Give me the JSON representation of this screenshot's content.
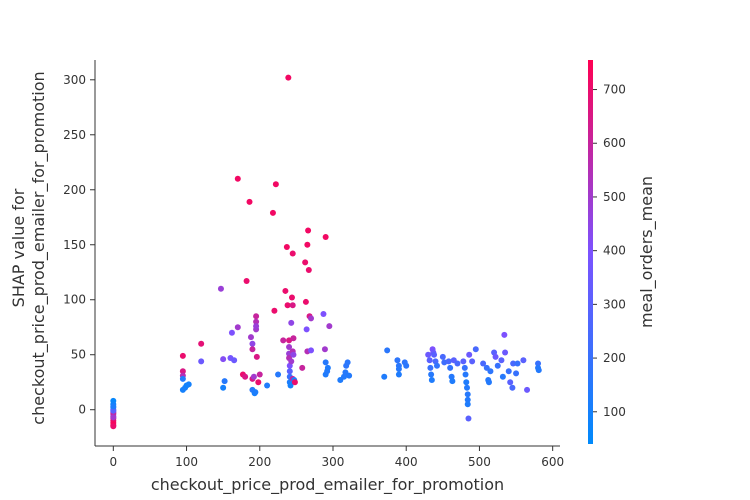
{
  "chart_data": {
    "type": "scatter",
    "xlabel": "checkout_price_prod_emailer_for_promotion",
    "ylabel_lines": [
      "SHAP value for",
      "checkout_price_prod_emailer_for_promotion"
    ],
    "colorbar_label": "meal_orders_mean",
    "xlim": [
      -25,
      610
    ],
    "ylim": [
      -33,
      318
    ],
    "x_ticks": [
      0,
      100,
      200,
      300,
      400,
      500,
      600
    ],
    "y_ticks": [
      0,
      50,
      100,
      150,
      200,
      250,
      300
    ],
    "colorbar_range": [
      40,
      755
    ],
    "colorbar_ticks": [
      100,
      200,
      300,
      400,
      500,
      600,
      700
    ],
    "color_low": "#008afb",
    "color_mid": "#7c52ff",
    "color_high": "#ff0052",
    "points": [
      {
        "x": 0,
        "y": 8,
        "c": 60
      },
      {
        "x": 0,
        "y": 5,
        "c": 80
      },
      {
        "x": 0,
        "y": 2,
        "c": 150
      },
      {
        "x": 0,
        "y": 0,
        "c": 200
      },
      {
        "x": 0,
        "y": -2,
        "c": 350
      },
      {
        "x": 0,
        "y": -4,
        "c": 450
      },
      {
        "x": 0,
        "y": -6,
        "c": 550
      },
      {
        "x": 0,
        "y": -8,
        "c": 650
      },
      {
        "x": 0,
        "y": -10,
        "c": 700
      },
      {
        "x": 0,
        "y": -12,
        "c": 720
      },
      {
        "x": 0,
        "y": -14,
        "c": 740
      },
      {
        "x": 0,
        "y": -15,
        "c": 700
      },
      {
        "x": 0,
        "y": -3,
        "c": 600
      },
      {
        "x": 0,
        "y": -1,
        "c": 300
      },
      {
        "x": 0,
        "y": 3,
        "c": 120
      },
      {
        "x": 0,
        "y": -7,
        "c": 500
      },
      {
        "x": 95,
        "y": 49,
        "c": 700
      },
      {
        "x": 95,
        "y": 35,
        "c": 650
      },
      {
        "x": 95,
        "y": 31,
        "c": 550
      },
      {
        "x": 95,
        "y": 28,
        "c": 140
      },
      {
        "x": 95,
        "y": 18,
        "c": 100
      },
      {
        "x": 98,
        "y": 20,
        "c": 110
      },
      {
        "x": 100,
        "y": 22,
        "c": 90
      },
      {
        "x": 103,
        "y": 23,
        "c": 100
      },
      {
        "x": 120,
        "y": 60,
        "c": 680
      },
      {
        "x": 120,
        "y": 44,
        "c": 350
      },
      {
        "x": 147,
        "y": 110,
        "c": 480
      },
      {
        "x": 150,
        "y": 46,
        "c": 420
      },
      {
        "x": 152,
        "y": 26,
        "c": 150
      },
      {
        "x": 150,
        "y": 20,
        "c": 100
      },
      {
        "x": 160,
        "y": 47,
        "c": 380
      },
      {
        "x": 162,
        "y": 70,
        "c": 400
      },
      {
        "x": 165,
        "y": 45,
        "c": 350
      },
      {
        "x": 170,
        "y": 210,
        "c": 720
      },
      {
        "x": 170,
        "y": 75,
        "c": 500
      },
      {
        "x": 177,
        "y": 32,
        "c": 700
      },
      {
        "x": 180,
        "y": 30,
        "c": 650
      },
      {
        "x": 182,
        "y": 117,
        "c": 700
      },
      {
        "x": 186,
        "y": 189,
        "c": 720
      },
      {
        "x": 188,
        "y": 66,
        "c": 500
      },
      {
        "x": 190,
        "y": 60,
        "c": 450
      },
      {
        "x": 190,
        "y": 55,
        "c": 600
      },
      {
        "x": 190,
        "y": 28,
        "c": 650
      },
      {
        "x": 190,
        "y": 18,
        "c": 150
      },
      {
        "x": 192,
        "y": 30,
        "c": 500
      },
      {
        "x": 193,
        "y": 15,
        "c": 100
      },
      {
        "x": 194,
        "y": 16,
        "c": 120
      },
      {
        "x": 195,
        "y": 85,
        "c": 600
      },
      {
        "x": 195,
        "y": 80,
        "c": 550
      },
      {
        "x": 195,
        "y": 73,
        "c": 500
      },
      {
        "x": 195,
        "y": 76,
        "c": 480
      },
      {
        "x": 196,
        "y": 48,
        "c": 650
      },
      {
        "x": 198,
        "y": 25,
        "c": 700
      },
      {
        "x": 200,
        "y": 32,
        "c": 600
      },
      {
        "x": 210,
        "y": 22,
        "c": 130
      },
      {
        "x": 218,
        "y": 179,
        "c": 720
      },
      {
        "x": 220,
        "y": 90,
        "c": 700
      },
      {
        "x": 222,
        "y": 205,
        "c": 720
      },
      {
        "x": 225,
        "y": 32,
        "c": 150
      },
      {
        "x": 232,
        "y": 63,
        "c": 600
      },
      {
        "x": 235,
        "y": 108,
        "c": 700
      },
      {
        "x": 237,
        "y": 148,
        "c": 720
      },
      {
        "x": 238,
        "y": 95,
        "c": 700
      },
      {
        "x": 239,
        "y": 302,
        "c": 720
      },
      {
        "x": 240,
        "y": 63,
        "c": 650
      },
      {
        "x": 240,
        "y": 57,
        "c": 500
      },
      {
        "x": 240,
        "y": 51,
        "c": 480
      },
      {
        "x": 240,
        "y": 47,
        "c": 550
      },
      {
        "x": 241,
        "y": 40,
        "c": 400
      },
      {
        "x": 241,
        "y": 35,
        "c": 300
      },
      {
        "x": 241,
        "y": 30,
        "c": 200
      },
      {
        "x": 241,
        "y": 25,
        "c": 120
      },
      {
        "x": 242,
        "y": 22,
        "c": 100
      },
      {
        "x": 243,
        "y": 79,
        "c": 450
      },
      {
        "x": 243,
        "y": 44,
        "c": 500
      },
      {
        "x": 244,
        "y": 102,
        "c": 700
      },
      {
        "x": 245,
        "y": 142,
        "c": 700
      },
      {
        "x": 245,
        "y": 95,
        "c": 650
      },
      {
        "x": 245,
        "y": 53,
        "c": 550
      },
      {
        "x": 245,
        "y": 28,
        "c": 600
      },
      {
        "x": 246,
        "y": 65,
        "c": 600
      },
      {
        "x": 246,
        "y": 50,
        "c": 450
      },
      {
        "x": 247,
        "y": 27,
        "c": 130
      },
      {
        "x": 248,
        "y": 25,
        "c": 700
      },
      {
        "x": 258,
        "y": 38,
        "c": 600
      },
      {
        "x": 262,
        "y": 134,
        "c": 700
      },
      {
        "x": 263,
        "y": 98,
        "c": 700
      },
      {
        "x": 264,
        "y": 73,
        "c": 400
      },
      {
        "x": 265,
        "y": 150,
        "c": 720
      },
      {
        "x": 265,
        "y": 53,
        "c": 550
      },
      {
        "x": 266,
        "y": 163,
        "c": 720
      },
      {
        "x": 267,
        "y": 127,
        "c": 700
      },
      {
        "x": 268,
        "y": 85,
        "c": 650
      },
      {
        "x": 270,
        "y": 83,
        "c": 500
      },
      {
        "x": 270,
        "y": 54,
        "c": 400
      },
      {
        "x": 287,
        "y": 87,
        "c": 400
      },
      {
        "x": 289,
        "y": 55,
        "c": 500
      },
      {
        "x": 290,
        "y": 157,
        "c": 720
      },
      {
        "x": 290,
        "y": 32,
        "c": 130
      },
      {
        "x": 290,
        "y": 43,
        "c": 150
      },
      {
        "x": 292,
        "y": 35,
        "c": 140
      },
      {
        "x": 293,
        "y": 38,
        "c": 130
      },
      {
        "x": 295,
        "y": 76,
        "c": 500
      },
      {
        "x": 310,
        "y": 27,
        "c": 130
      },
      {
        "x": 315,
        "y": 30,
        "c": 140
      },
      {
        "x": 317,
        "y": 34,
        "c": 150
      },
      {
        "x": 318,
        "y": 40,
        "c": 170
      },
      {
        "x": 320,
        "y": 43,
        "c": 160
      },
      {
        "x": 322,
        "y": 31,
        "c": 140
      },
      {
        "x": 370,
        "y": 30,
        "c": 130
      },
      {
        "x": 374,
        "y": 54,
        "c": 160
      },
      {
        "x": 388,
        "y": 45,
        "c": 170
      },
      {
        "x": 390,
        "y": 40,
        "c": 160
      },
      {
        "x": 390,
        "y": 37,
        "c": 150
      },
      {
        "x": 390,
        "y": 32,
        "c": 130
      },
      {
        "x": 398,
        "y": 43,
        "c": 170
      },
      {
        "x": 400,
        "y": 40,
        "c": 160
      },
      {
        "x": 430,
        "y": 50,
        "c": 350
      },
      {
        "x": 432,
        "y": 45,
        "c": 300
      },
      {
        "x": 433,
        "y": 38,
        "c": 200
      },
      {
        "x": 434,
        "y": 32,
        "c": 150
      },
      {
        "x": 435,
        "y": 27,
        "c": 130
      },
      {
        "x": 436,
        "y": 55,
        "c": 400
      },
      {
        "x": 437,
        "y": 52,
        "c": 350
      },
      {
        "x": 438,
        "y": 50,
        "c": 300
      },
      {
        "x": 440,
        "y": 44,
        "c": 250
      },
      {
        "x": 442,
        "y": 40,
        "c": 180
      },
      {
        "x": 450,
        "y": 48,
        "c": 250
      },
      {
        "x": 452,
        "y": 43,
        "c": 220
      },
      {
        "x": 458,
        "y": 44,
        "c": 250
      },
      {
        "x": 460,
        "y": 38,
        "c": 180
      },
      {
        "x": 462,
        "y": 30,
        "c": 150
      },
      {
        "x": 463,
        "y": 26,
        "c": 130
      },
      {
        "x": 465,
        "y": 45,
        "c": 300
      },
      {
        "x": 470,
        "y": 42,
        "c": 250
      },
      {
        "x": 478,
        "y": 44,
        "c": 300
      },
      {
        "x": 480,
        "y": 38,
        "c": 200
      },
      {
        "x": 481,
        "y": 32,
        "c": 150
      },
      {
        "x": 482,
        "y": 25,
        "c": 130
      },
      {
        "x": 483,
        "y": 20,
        "c": 140
      },
      {
        "x": 484,
        "y": 14,
        "c": 150
      },
      {
        "x": 484,
        "y": 9,
        "c": 140
      },
      {
        "x": 484,
        "y": 5,
        "c": 130
      },
      {
        "x": 485,
        "y": -8,
        "c": 300
      },
      {
        "x": 486,
        "y": 50,
        "c": 350
      },
      {
        "x": 490,
        "y": 44,
        "c": 300
      },
      {
        "x": 495,
        "y": 55,
        "c": 250
      },
      {
        "x": 505,
        "y": 42,
        "c": 250
      },
      {
        "x": 510,
        "y": 38,
        "c": 200
      },
      {
        "x": 512,
        "y": 27,
        "c": 150
      },
      {
        "x": 513,
        "y": 25,
        "c": 140
      },
      {
        "x": 515,
        "y": 35,
        "c": 170
      },
      {
        "x": 520,
        "y": 52,
        "c": 300
      },
      {
        "x": 522,
        "y": 48,
        "c": 350
      },
      {
        "x": 525,
        "y": 40,
        "c": 200
      },
      {
        "x": 530,
        "y": 45,
        "c": 300
      },
      {
        "x": 532,
        "y": 30,
        "c": 150
      },
      {
        "x": 534,
        "y": 68,
        "c": 400
      },
      {
        "x": 535,
        "y": 52,
        "c": 350
      },
      {
        "x": 540,
        "y": 35,
        "c": 200
      },
      {
        "x": 542,
        "y": 25,
        "c": 300
      },
      {
        "x": 545,
        "y": 20,
        "c": 250
      },
      {
        "x": 546,
        "y": 42,
        "c": 250
      },
      {
        "x": 550,
        "y": 33,
        "c": 200
      },
      {
        "x": 552,
        "y": 42,
        "c": 200
      },
      {
        "x": 560,
        "y": 45,
        "c": 300
      },
      {
        "x": 565,
        "y": 18,
        "c": 350
      },
      {
        "x": 580,
        "y": 42,
        "c": 200
      },
      {
        "x": 580,
        "y": 38,
        "c": 150
      },
      {
        "x": 581,
        "y": 36,
        "c": 140
      }
    ]
  }
}
